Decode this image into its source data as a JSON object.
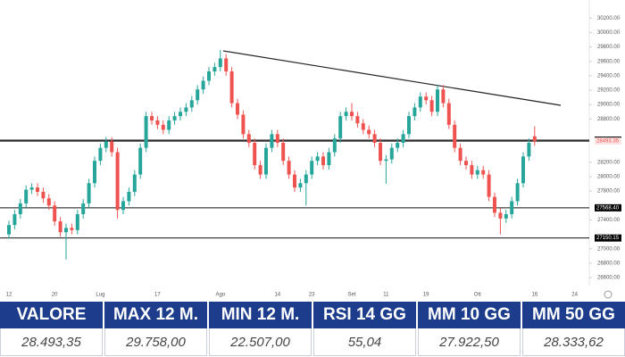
{
  "chart_data": {
    "type": "candlestick",
    "categories": [
      "12",
      null,
      null,
      null,
      null,
      null,
      null,
      null,
      "20",
      null,
      null,
      null,
      null,
      null,
      null,
      null,
      "Lug",
      null,
      null,
      null,
      null,
      null,
      null,
      null,
      null,
      null,
      "17",
      null,
      null,
      null,
      null,
      null,
      null,
      null,
      null,
      null,
      null,
      "Ago",
      null,
      null,
      null,
      null,
      null,
      null,
      null,
      null,
      null,
      "14",
      null,
      null,
      null,
      null,
      null,
      "23",
      null,
      null,
      null,
      null,
      null,
      null,
      "Set",
      null,
      null,
      null,
      null,
      null,
      "11",
      null,
      null,
      null,
      null,
      null,
      null,
      "19",
      null,
      null,
      null,
      null,
      null,
      null,
      null,
      null,
      "Ott",
      null,
      null,
      null,
      null,
      null,
      null,
      null,
      null,
      null,
      "16",
      null,
      null,
      null,
      null,
      null,
      null,
      "24",
      null,
      null,
      null,
      null
    ],
    "open": [
      27200,
      27330,
      27480,
      27630,
      27820,
      27850,
      27790,
      27700,
      27600,
      27380,
      27230,
      27290,
      27260,
      27480,
      27630,
      27910,
      28220,
      28400,
      28490,
      28340,
      27540,
      27660,
      27790,
      28030,
      28400,
      28840,
      28780,
      28720,
      28650,
      28780,
      28840,
      28900,
      28960,
      29060,
      29210,
      29330,
      29460,
      29520,
      29640,
      29460,
      29020,
      28860,
      28590,
      28470,
      28160,
      28030,
      28400,
      28590,
      28470,
      28220,
      28030,
      27850,
      27910,
      28030,
      28220,
      28280,
      28160,
      28340,
      28530,
      28840,
      28900,
      28840,
      28740,
      28650,
      28590,
      28470,
      28220,
      28240,
      28400,
      28470,
      28590,
      28840,
      28960,
      29110,
      29060,
      28900,
      29210,
      29020,
      28720,
      28400,
      28220,
      28160,
      28030,
      28090,
      28030,
      27720,
      27500,
      27420,
      27480,
      27660,
      27910,
      28280,
      28560,
      null,
      null,
      null,
      null,
      null,
      null,
      null,
      null,
      null,
      null,
      null
    ],
    "high": [
      27390,
      27540,
      27690,
      27880,
      27910,
      27910,
      27850,
      27760,
      27660,
      27440,
      27350,
      27350,
      27540,
      27690,
      27970,
      28280,
      28460,
      28550,
      28550,
      28400,
      27720,
      27850,
      28090,
      28460,
      28900,
      28900,
      28840,
      28780,
      28840,
      28900,
      28960,
      29020,
      29120,
      29270,
      29390,
      29520,
      29580,
      29758,
      29700,
      29520,
      29080,
      28920,
      28650,
      28530,
      28220,
      28460,
      28650,
      28650,
      28530,
      28280,
      28090,
      27970,
      28090,
      28280,
      28340,
      28340,
      28400,
      28590,
      28900,
      28960,
      29020,
      28900,
      28800,
      28710,
      28650,
      28530,
      28300,
      28460,
      28530,
      28650,
      28900,
      29020,
      29170,
      29170,
      29120,
      29270,
      29270,
      29080,
      28780,
      28460,
      28280,
      28220,
      28150,
      28150,
      28090,
      27780,
      27560,
      27540,
      27720,
      27970,
      28340,
      28530,
      28700,
      null,
      null,
      null,
      null,
      null,
      null,
      null,
      null,
      null,
      null,
      null
    ],
    "low": [
      27140,
      27270,
      27420,
      27570,
      27760,
      27730,
      27640,
      27540,
      27320,
      27170,
      26850,
      27200,
      27200,
      27420,
      27570,
      27850,
      28160,
      28340,
      28280,
      27420,
      27480,
      27600,
      27730,
      27970,
      28340,
      28720,
      28660,
      28590,
      28590,
      28720,
      28780,
      28840,
      28900,
      29000,
      29150,
      29270,
      29400,
      29460,
      29400,
      28960,
      28800,
      28530,
      28410,
      28100,
      27970,
      27970,
      28340,
      28410,
      28160,
      27970,
      27790,
      27790,
      27600,
      27970,
      28160,
      28100,
      28100,
      28280,
      28470,
      28780,
      28780,
      28680,
      28590,
      28530,
      28410,
      28160,
      27900,
      28180,
      28340,
      28410,
      28530,
      28780,
      28900,
      29000,
      28840,
      28840,
      28960,
      28660,
      28340,
      28160,
      28100,
      27970,
      27970,
      27970,
      27660,
      27440,
      27200,
      27360,
      27420,
      27600,
      27850,
      28220,
      28430,
      null,
      null,
      null,
      null,
      null,
      null,
      null,
      null,
      null,
      null,
      null
    ],
    "close": [
      27330,
      27480,
      27630,
      27820,
      27850,
      27790,
      27700,
      27600,
      27380,
      27230,
      27290,
      27260,
      27480,
      27630,
      27910,
      28220,
      28400,
      28490,
      28340,
      27540,
      27660,
      27790,
      28030,
      28400,
      28840,
      28780,
      28720,
      28650,
      28780,
      28840,
      28900,
      28960,
      29060,
      29210,
      29330,
      29460,
      29520,
      29640,
      29460,
      29020,
      28860,
      28590,
      28470,
      28160,
      28030,
      28400,
      28590,
      28470,
      28220,
      28030,
      27850,
      27910,
      28030,
      28220,
      28280,
      28160,
      28340,
      28530,
      28840,
      28900,
      28840,
      28740,
      28650,
      28590,
      28470,
      28220,
      28240,
      28400,
      28470,
      28590,
      28840,
      28960,
      29110,
      29060,
      28900,
      29210,
      29020,
      28720,
      28400,
      28220,
      28160,
      28030,
      28090,
      28030,
      27720,
      27500,
      27420,
      27480,
      27660,
      27910,
      28280,
      28470,
      28493.35,
      null,
      null,
      null,
      null,
      null,
      null,
      null,
      null,
      null,
      null,
      null
    ],
    "up_color": "#26a69a",
    "down_color": "#ef5350",
    "ylim": [
      26490,
      30450
    ],
    "yticks": [
      {
        "value": 30200,
        "label": "30200.00"
      },
      {
        "value": 30000,
        "label": "30000.00"
      },
      {
        "value": 29800,
        "label": "29800.00"
      },
      {
        "value": 29600,
        "label": "29600.00"
      },
      {
        "value": 29400,
        "label": "29400.00"
      },
      {
        "value": 29200,
        "label": "29200.00"
      },
      {
        "value": 29000,
        "label": "29000.00"
      },
      {
        "value": 28800,
        "label": "28800.00"
      },
      {
        "value": 28200,
        "label": "28200.00"
      },
      {
        "value": 28000,
        "label": "28000.00"
      },
      {
        "value": 27800,
        "label": "27800.00"
      },
      {
        "value": 27400,
        "label": "27400.00"
      },
      {
        "value": 27000,
        "label": "27000.00"
      },
      {
        "value": 26800,
        "label": "26800.00"
      },
      {
        "value": 26600,
        "label": "26600.00"
      }
    ],
    "levels": [
      {
        "value": 28506.81,
        "color": "#000000"
      },
      {
        "value": 28493.35,
        "color": "#ef5350"
      },
      {
        "value": {
          "value": 27568.4,
          "label": "27568.40"
        },
        "color": "#000000"
      },
      {
        "value": 27150.15,
        "color": "#000000"
      }
    ]
  },
  "table": {
    "header": [
      "VALORE",
      "MAX 12 M.",
      "MIN 12 M.",
      "RSI 14 GG",
      "MM 10 GG",
      "MM 50 GG"
    ],
    "row": [
      "28.493,35",
      "29.758,00",
      "22.507,00",
      "55,04",
      "27.922,50",
      "28.333,62"
    ]
  }
}
